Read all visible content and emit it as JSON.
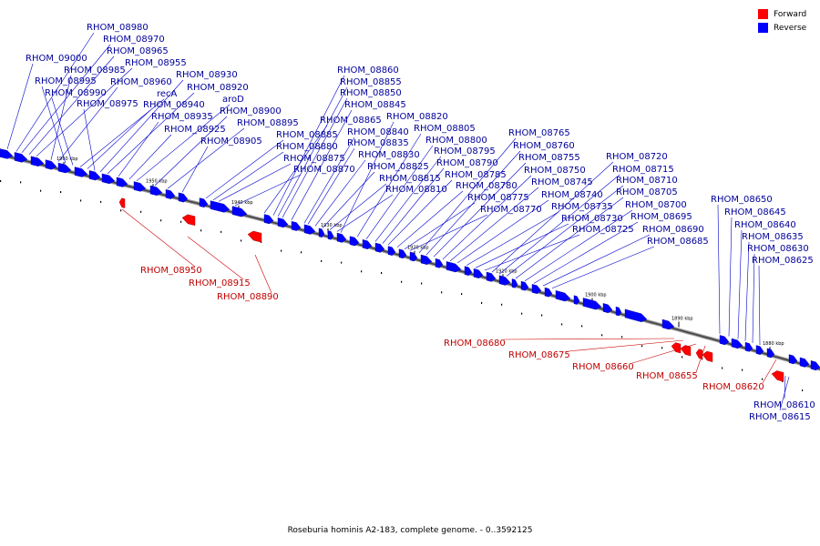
{
  "legend": [
    {
      "label": "Forward",
      "color": "#ff0000"
    },
    {
      "label": "Reverse",
      "color": "#0000ff"
    }
  ],
  "caption": "Roseburia hominis A2-183, complete genome. - 0..3592125",
  "colors": {
    "forward": "#ff0000",
    "reverse": "#0000ff",
    "backbone": "#666666",
    "forward_label": "#c00000",
    "reverse_label": "#00009a"
  },
  "ticks_kbp": [
    "1960 kbp",
    "1950 kbp",
    "1940 kbp",
    "1930 kbp",
    "1920 kbp",
    "1910 kbp",
    "1900 kbp",
    "1890 kbp",
    "1880 kbp"
  ],
  "genes": {
    "reverse": [
      "RHOM_08980",
      "RHOM_08970",
      "RHOM_08965",
      "RHOM_09000",
      "RHOM_08955",
      "RHOM_08985",
      "RHOM_08960",
      "RHOM_08930",
      "RHOM_08995",
      "RHOM_08920",
      "recA",
      "RHOM_08990",
      "aroD",
      "RHOM_08940",
      "RHOM_08975",
      "RHOM_08900",
      "RHOM_08935",
      "RHOM_08895",
      "RHOM_08925",
      "RHOM_08905",
      "RHOM_08860",
      "RHOM_08855",
      "RHOM_08850",
      "RHOM_08845",
      "RHOM_08820",
      "RHOM_08865",
      "RHOM_08885",
      "RHOM_08805",
      "RHOM_08840",
      "RHOM_08800",
      "RHOM_08880",
      "RHOM_08835",
      "RHOM_08795",
      "RHOM_08875",
      "RHOM_08830",
      "RHOM_08790",
      "RHOM_08870",
      "RHOM_08825",
      "RHOM_08785",
      "RHOM_08815",
      "RHOM_08780",
      "RHOM_08810",
      "RHOM_08775",
      "RHOM_08770",
      "RHOM_08765",
      "RHOM_08760",
      "RHOM_08755",
      "RHOM_08750",
      "RHOM_08745",
      "RHOM_08740",
      "RHOM_08735",
      "RHOM_08730",
      "RHOM_08725",
      "RHOM_08720",
      "RHOM_08715",
      "RHOM_08710",
      "RHOM_08705",
      "RHOM_08700",
      "RHOM_08695",
      "RHOM_08690",
      "RHOM_08685",
      "RHOM_08650",
      "RHOM_08645",
      "RHOM_08640",
      "RHOM_08635",
      "RHOM_08630",
      "RHOM_08625",
      "RHOM_08610",
      "RHOM_08615"
    ],
    "forward": [
      "RHOM_08950",
      "RHOM_08915",
      "RHOM_08890",
      "RHOM_08680",
      "RHOM_08675",
      "RHOM_08660",
      "RHOM_08655",
      "RHOM_08620"
    ]
  }
}
